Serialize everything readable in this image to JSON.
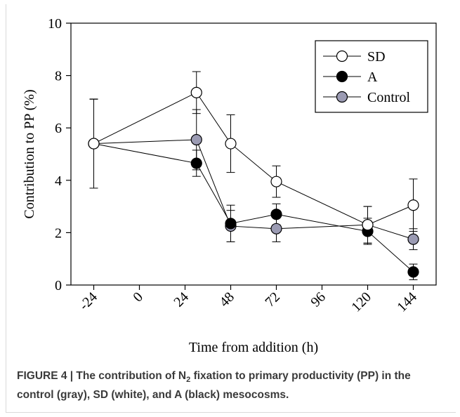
{
  "chart_data": {
    "type": "line",
    "xlabel": "Time from addition (h)",
    "ylabel": "Contribution to PP (%)",
    "xlim": [
      -36,
      156
    ],
    "ylim": [
      0,
      10
    ],
    "xticks": [
      -24,
      0,
      24,
      48,
      72,
      96,
      120,
      144
    ],
    "yticks": [
      0,
      2,
      4,
      6,
      8,
      10
    ],
    "xtick_labels": [
      "-24",
      "0",
      "24",
      "48",
      "72",
      "96",
      "120",
      "144"
    ],
    "ytick_labels": [
      "0",
      "2",
      "4",
      "6",
      "8",
      "10"
    ],
    "legend_position": "top-right",
    "series": [
      {
        "name": "SD",
        "marker_fill": "#ffffff",
        "x": [
          -24,
          30,
          48,
          72,
          120,
          144
        ],
        "y": [
          5.4,
          7.35,
          5.4,
          3.95,
          2.3,
          3.05
        ],
        "err": [
          1.7,
          0.8,
          1.1,
          0.6,
          0.7,
          1.0
        ]
      },
      {
        "name": "A",
        "marker_fill": "#000000",
        "x": [
          -24,
          30,
          48,
          72,
          120,
          144
        ],
        "y": [
          5.4,
          4.65,
          2.35,
          2.7,
          2.05,
          0.5
        ],
        "err": [
          1.7,
          0.5,
          0.7,
          0.4,
          0.5,
          0.3
        ]
      },
      {
        "name": "Control",
        "marker_fill": "#9b9bb3",
        "x": [
          -24,
          30,
          48,
          72,
          120,
          144
        ],
        "y": [
          5.4,
          5.55,
          2.25,
          2.15,
          2.3,
          1.75
        ],
        "err": [
          1.7,
          1.15,
          0.6,
          0.5,
          0.7,
          0.4
        ]
      }
    ]
  },
  "caption": {
    "prefix": "FIGURE 4 | The contribution of N",
    "subscript": "2",
    "suffix": " fixation to primary productivity (PP) in the control (gray), SD (white), and A (black) mesocosms."
  }
}
